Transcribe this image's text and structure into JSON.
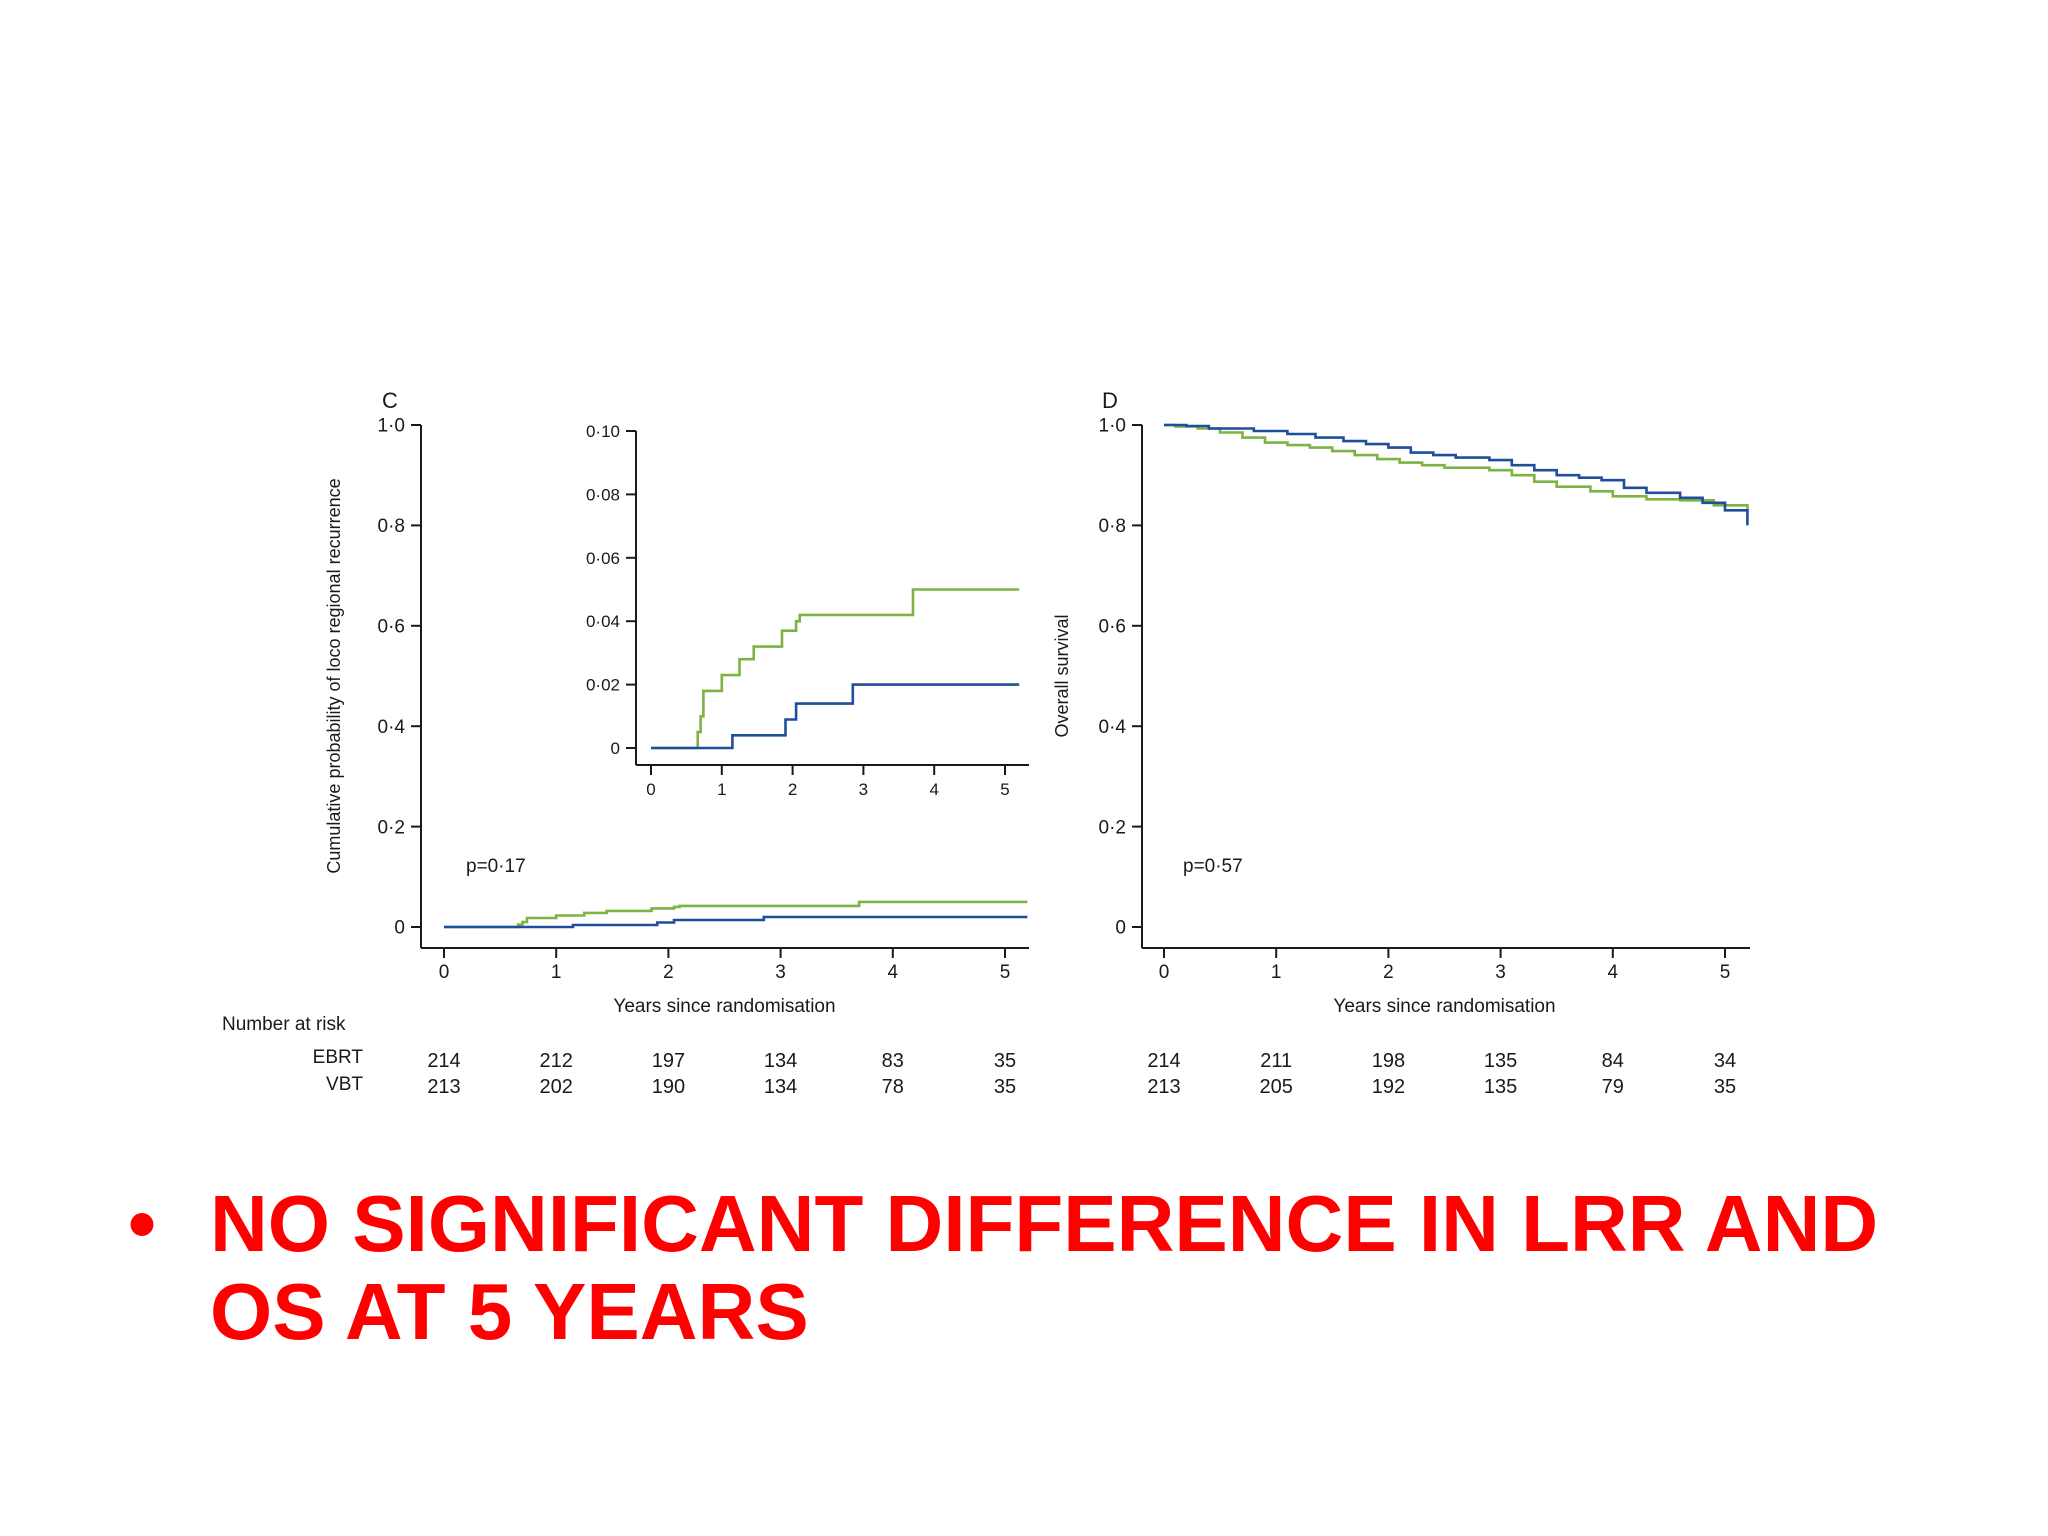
{
  "slide": {
    "bullet_symbol": "•",
    "bullet_text": "NO SIGNIFICANT DIFFERENCE IN LRR AND OS AT 5 YEARS"
  },
  "colors": {
    "EBRT": "#7cb342",
    "VBT": "#1f4e9c"
  },
  "number_at_risk": {
    "title": "Number at risk",
    "group_labels": [
      "EBRT",
      "VBT"
    ]
  },
  "chart_data": [
    {
      "id": "C",
      "panel_label": "C",
      "type": "line",
      "step": true,
      "ylabel": "Cumulative probability of loco regional recurrence",
      "xlabel": "Years since randomisation",
      "ylim": [
        0,
        1.0
      ],
      "xlim": [
        0,
        5.2
      ],
      "yticks": [
        0,
        0.2,
        0.4,
        0.6,
        0.8,
        1.0
      ],
      "ytick_labels": [
        "0",
        "0·2",
        "0·4",
        "0·6",
        "0·8",
        "1·0"
      ],
      "xticks": [
        0,
        1,
        2,
        3,
        4,
        5
      ],
      "xtick_labels": [
        "0",
        "1",
        "2",
        "3",
        "4",
        "5"
      ],
      "annotation": "p=0·17",
      "series": [
        {
          "name": "EBRT",
          "x": [
            0,
            0.66,
            0.7,
            0.74,
            1.0,
            1.25,
            1.45,
            1.85,
            2.05,
            2.1,
            3.0,
            3.7,
            5.2
          ],
          "y": [
            0,
            0.005,
            0.01,
            0.018,
            0.023,
            0.028,
            0.032,
            0.037,
            0.04,
            0.042,
            0.042,
            0.05,
            0.05
          ]
        },
        {
          "name": "VBT",
          "x": [
            0,
            1.15,
            1.9,
            2.05,
            2.85,
            5.2
          ],
          "y": [
            0,
            0.004,
            0.009,
            0.014,
            0.02,
            0.02
          ]
        }
      ],
      "number_at_risk": {
        "EBRT": [
          "214",
          "212",
          "197",
          "134",
          "83",
          "35"
        ],
        "VBT": [
          "213",
          "202",
          "190",
          "134",
          "78",
          "35"
        ]
      }
    },
    {
      "id": "C-inset",
      "panel_label": "",
      "type": "line",
      "step": true,
      "ylabel": "",
      "xlabel": "",
      "ylim": [
        0,
        0.1
      ],
      "xlim": [
        0,
        5.2
      ],
      "yticks": [
        0,
        0.02,
        0.04,
        0.06,
        0.08,
        0.1
      ],
      "ytick_labels": [
        "0",
        "0·02",
        "0·04",
        "0·06",
        "0·08",
        "0·10"
      ],
      "xticks": [
        0,
        1,
        2,
        3,
        4,
        5
      ],
      "xtick_labels": [
        "0",
        "1",
        "2",
        "3",
        "4",
        "5"
      ],
      "annotation": "",
      "series": [
        {
          "name": "EBRT",
          "x": [
            0,
            0.66,
            0.7,
            0.74,
            1.0,
            1.25,
            1.45,
            1.85,
            2.05,
            2.1,
            3.0,
            3.7,
            5.2
          ],
          "y": [
            0,
            0.005,
            0.01,
            0.018,
            0.023,
            0.028,
            0.032,
            0.037,
            0.04,
            0.042,
            0.042,
            0.05,
            0.05
          ]
        },
        {
          "name": "VBT",
          "x": [
            0,
            1.15,
            1.9,
            2.05,
            2.85,
            5.2
          ],
          "y": [
            0,
            0.004,
            0.009,
            0.014,
            0.02,
            0.02
          ]
        }
      ]
    },
    {
      "id": "D",
      "panel_label": "D",
      "type": "line",
      "step": true,
      "ylabel": "Overall survival",
      "xlabel": "Years since randomisation",
      "ylim": [
        0,
        1.0
      ],
      "xlim": [
        0,
        5.2
      ],
      "yticks": [
        0,
        0.2,
        0.4,
        0.6,
        0.8,
        1.0
      ],
      "ytick_labels": [
        "0",
        "0·2",
        "0·4",
        "0·6",
        "0·8",
        "1·0"
      ],
      "xticks": [
        0,
        1,
        2,
        3,
        4,
        5
      ],
      "xtick_labels": [
        "0",
        "1",
        "2",
        "3",
        "4",
        "5"
      ],
      "annotation": "p=0·57",
      "series": [
        {
          "name": "EBRT",
          "x": [
            0,
            0.1,
            0.3,
            0.5,
            0.7,
            0.9,
            1.1,
            1.3,
            1.5,
            1.7,
            1.9,
            2.1,
            2.3,
            2.5,
            2.9,
            3.1,
            3.3,
            3.5,
            3.8,
            4.0,
            4.3,
            4.6,
            4.9,
            5.2
          ],
          "y": [
            1.0,
            0.997,
            0.993,
            0.985,
            0.975,
            0.965,
            0.96,
            0.955,
            0.948,
            0.94,
            0.932,
            0.925,
            0.92,
            0.915,
            0.91,
            0.9,
            0.887,
            0.877,
            0.868,
            0.858,
            0.852,
            0.85,
            0.84,
            0.825
          ]
        },
        {
          "name": "VBT",
          "x": [
            0,
            0.2,
            0.4,
            0.8,
            1.1,
            1.35,
            1.6,
            1.8,
            2.0,
            2.2,
            2.4,
            2.6,
            2.9,
            3.1,
            3.3,
            3.5,
            3.7,
            3.9,
            4.1,
            4.3,
            4.6,
            4.8,
            5.0,
            5.2
          ],
          "y": [
            1.0,
            0.998,
            0.993,
            0.988,
            0.982,
            0.975,
            0.968,
            0.962,
            0.955,
            0.945,
            0.94,
            0.935,
            0.93,
            0.92,
            0.91,
            0.9,
            0.895,
            0.89,
            0.875,
            0.865,
            0.855,
            0.845,
            0.83,
            0.8
          ]
        }
      ],
      "number_at_risk": {
        "EBRT": [
          "214",
          "211",
          "198",
          "135",
          "84",
          "34"
        ],
        "VBT": [
          "213",
          "205",
          "192",
          "135",
          "79",
          "35"
        ]
      }
    }
  ]
}
